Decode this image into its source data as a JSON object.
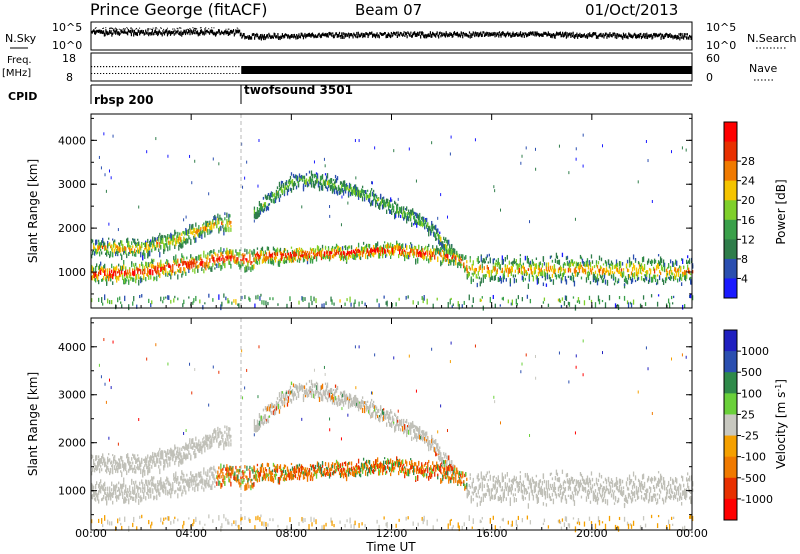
{
  "header": {
    "station": "Prince George (fitACF)",
    "beam": "Beam 07",
    "date": "01/Oct/2013"
  },
  "noise_panel": {
    "left_label": "N.Sky",
    "right_label": "N.Search",
    "left_ticks": [
      "10^5",
      "10^0"
    ],
    "right_ticks": [
      "10^5",
      "10^0"
    ]
  },
  "freq_panel": {
    "left_label_1": "Freq.",
    "left_label_2": "[MHz]",
    "left_ticks": [
      "18",
      "8"
    ],
    "right_label": "Nave",
    "right_ticks": [
      "60",
      "0"
    ]
  },
  "cpid": {
    "label": "CPID",
    "segments": [
      {
        "name": "rbsp 200",
        "start_hour": 0
      },
      {
        "name": "twofsound 3501",
        "start_hour": 6
      }
    ]
  },
  "colors": {
    "power_scale": [
      "#1a1aff",
      "#2b4fb0",
      "#2f7d4a",
      "#3aa04a",
      "#7fcf2a",
      "#f5c400",
      "#f07a00",
      "#e83000",
      "#ff0000"
    ],
    "velocity_scale": [
      "#ff0000",
      "#e83000",
      "#f07a00",
      "#f5a000",
      "#c8c8c0",
      "#6ad03a",
      "#2f8a4a",
      "#2b4fb0",
      "#2020c0"
    ],
    "ground_scatter": "#c0c0b8"
  },
  "chart_data": [
    {
      "type": "heatmap",
      "name": "power",
      "xlabel": "Time UT",
      "ylabel": "Slant Range [km]",
      "colorbar_label": "Power [dB]",
      "colorbar_ticks": [
        "4",
        "8",
        "12",
        "16",
        "20",
        "24",
        "28"
      ],
      "x_ticks": [
        "00:00",
        "04:00",
        "08:00",
        "12:00",
        "16:00",
        "20:00",
        "00:00"
      ],
      "y_ticks": [
        "1000",
        "2000",
        "3000",
        "4000"
      ],
      "xlim": [
        0,
        24
      ],
      "ylim": [
        180,
        4600
      ],
      "bands": [
        {
          "type": "scatter",
          "points": [
            [
              0,
              1000
            ],
            [
              2,
              1040
            ],
            [
              4,
              1230
            ],
            [
              5.5,
              1380
            ],
            [
              6.5,
              1300
            ]
          ],
          "half_width": [
            120,
            260
          ],
          "level": "high"
        },
        {
          "type": "scatter",
          "points": [
            [
              0,
              1600
            ],
            [
              2,
              1580
            ],
            [
              3.5,
              1800
            ],
            [
              5,
              2150
            ],
            [
              5.6,
              2150
            ]
          ],
          "half_width": [
            100,
            230
          ],
          "level": "mid"
        },
        {
          "type": "scatter",
          "points": [
            [
              6.5,
              2400
            ],
            [
              8,
              3100
            ],
            [
              9,
              3150
            ],
            [
              11,
              2800
            ],
            [
              13.5,
              2100
            ],
            [
              14.5,
              1400
            ]
          ],
          "half_width": [
            80,
            200
          ],
          "level": "low"
        },
        {
          "type": "scatter",
          "points": [
            [
              6.5,
              1400
            ],
            [
              9,
              1450
            ],
            [
              12,
              1550
            ],
            [
              14.5,
              1380
            ],
            [
              15,
              1200
            ]
          ],
          "half_width": [
            90,
            200
          ],
          "level": "high"
        },
        {
          "type": "scatter",
          "points": [
            [
              15,
              1100
            ],
            [
              19,
              1100
            ],
            [
              24,
              1050
            ]
          ],
          "half_width": [
            150,
            380
          ],
          "level": "mid"
        },
        {
          "type": "scatter",
          "points": [
            [
              0,
              380
            ],
            [
              24,
              380
            ]
          ],
          "half_width": [
            100,
            150
          ],
          "level": "low"
        }
      ]
    },
    {
      "type": "heatmap",
      "name": "velocity",
      "xlabel": "Time UT",
      "ylabel": "Slant Range [km]",
      "colorbar_label": "Velocity [m s^-1]",
      "colorbar_ticks": [
        "1000",
        "500",
        "100",
        "25",
        "-25",
        "-100",
        "-500",
        "-1000"
      ],
      "x_ticks": [
        "00:00",
        "04:00",
        "08:00",
        "12:00",
        "16:00",
        "20:00",
        "00:00"
      ],
      "y_ticks": [
        "1000",
        "2000",
        "3000",
        "4000"
      ],
      "xlim": [
        0,
        24
      ],
      "ylim": [
        180,
        4600
      ]
    }
  ]
}
